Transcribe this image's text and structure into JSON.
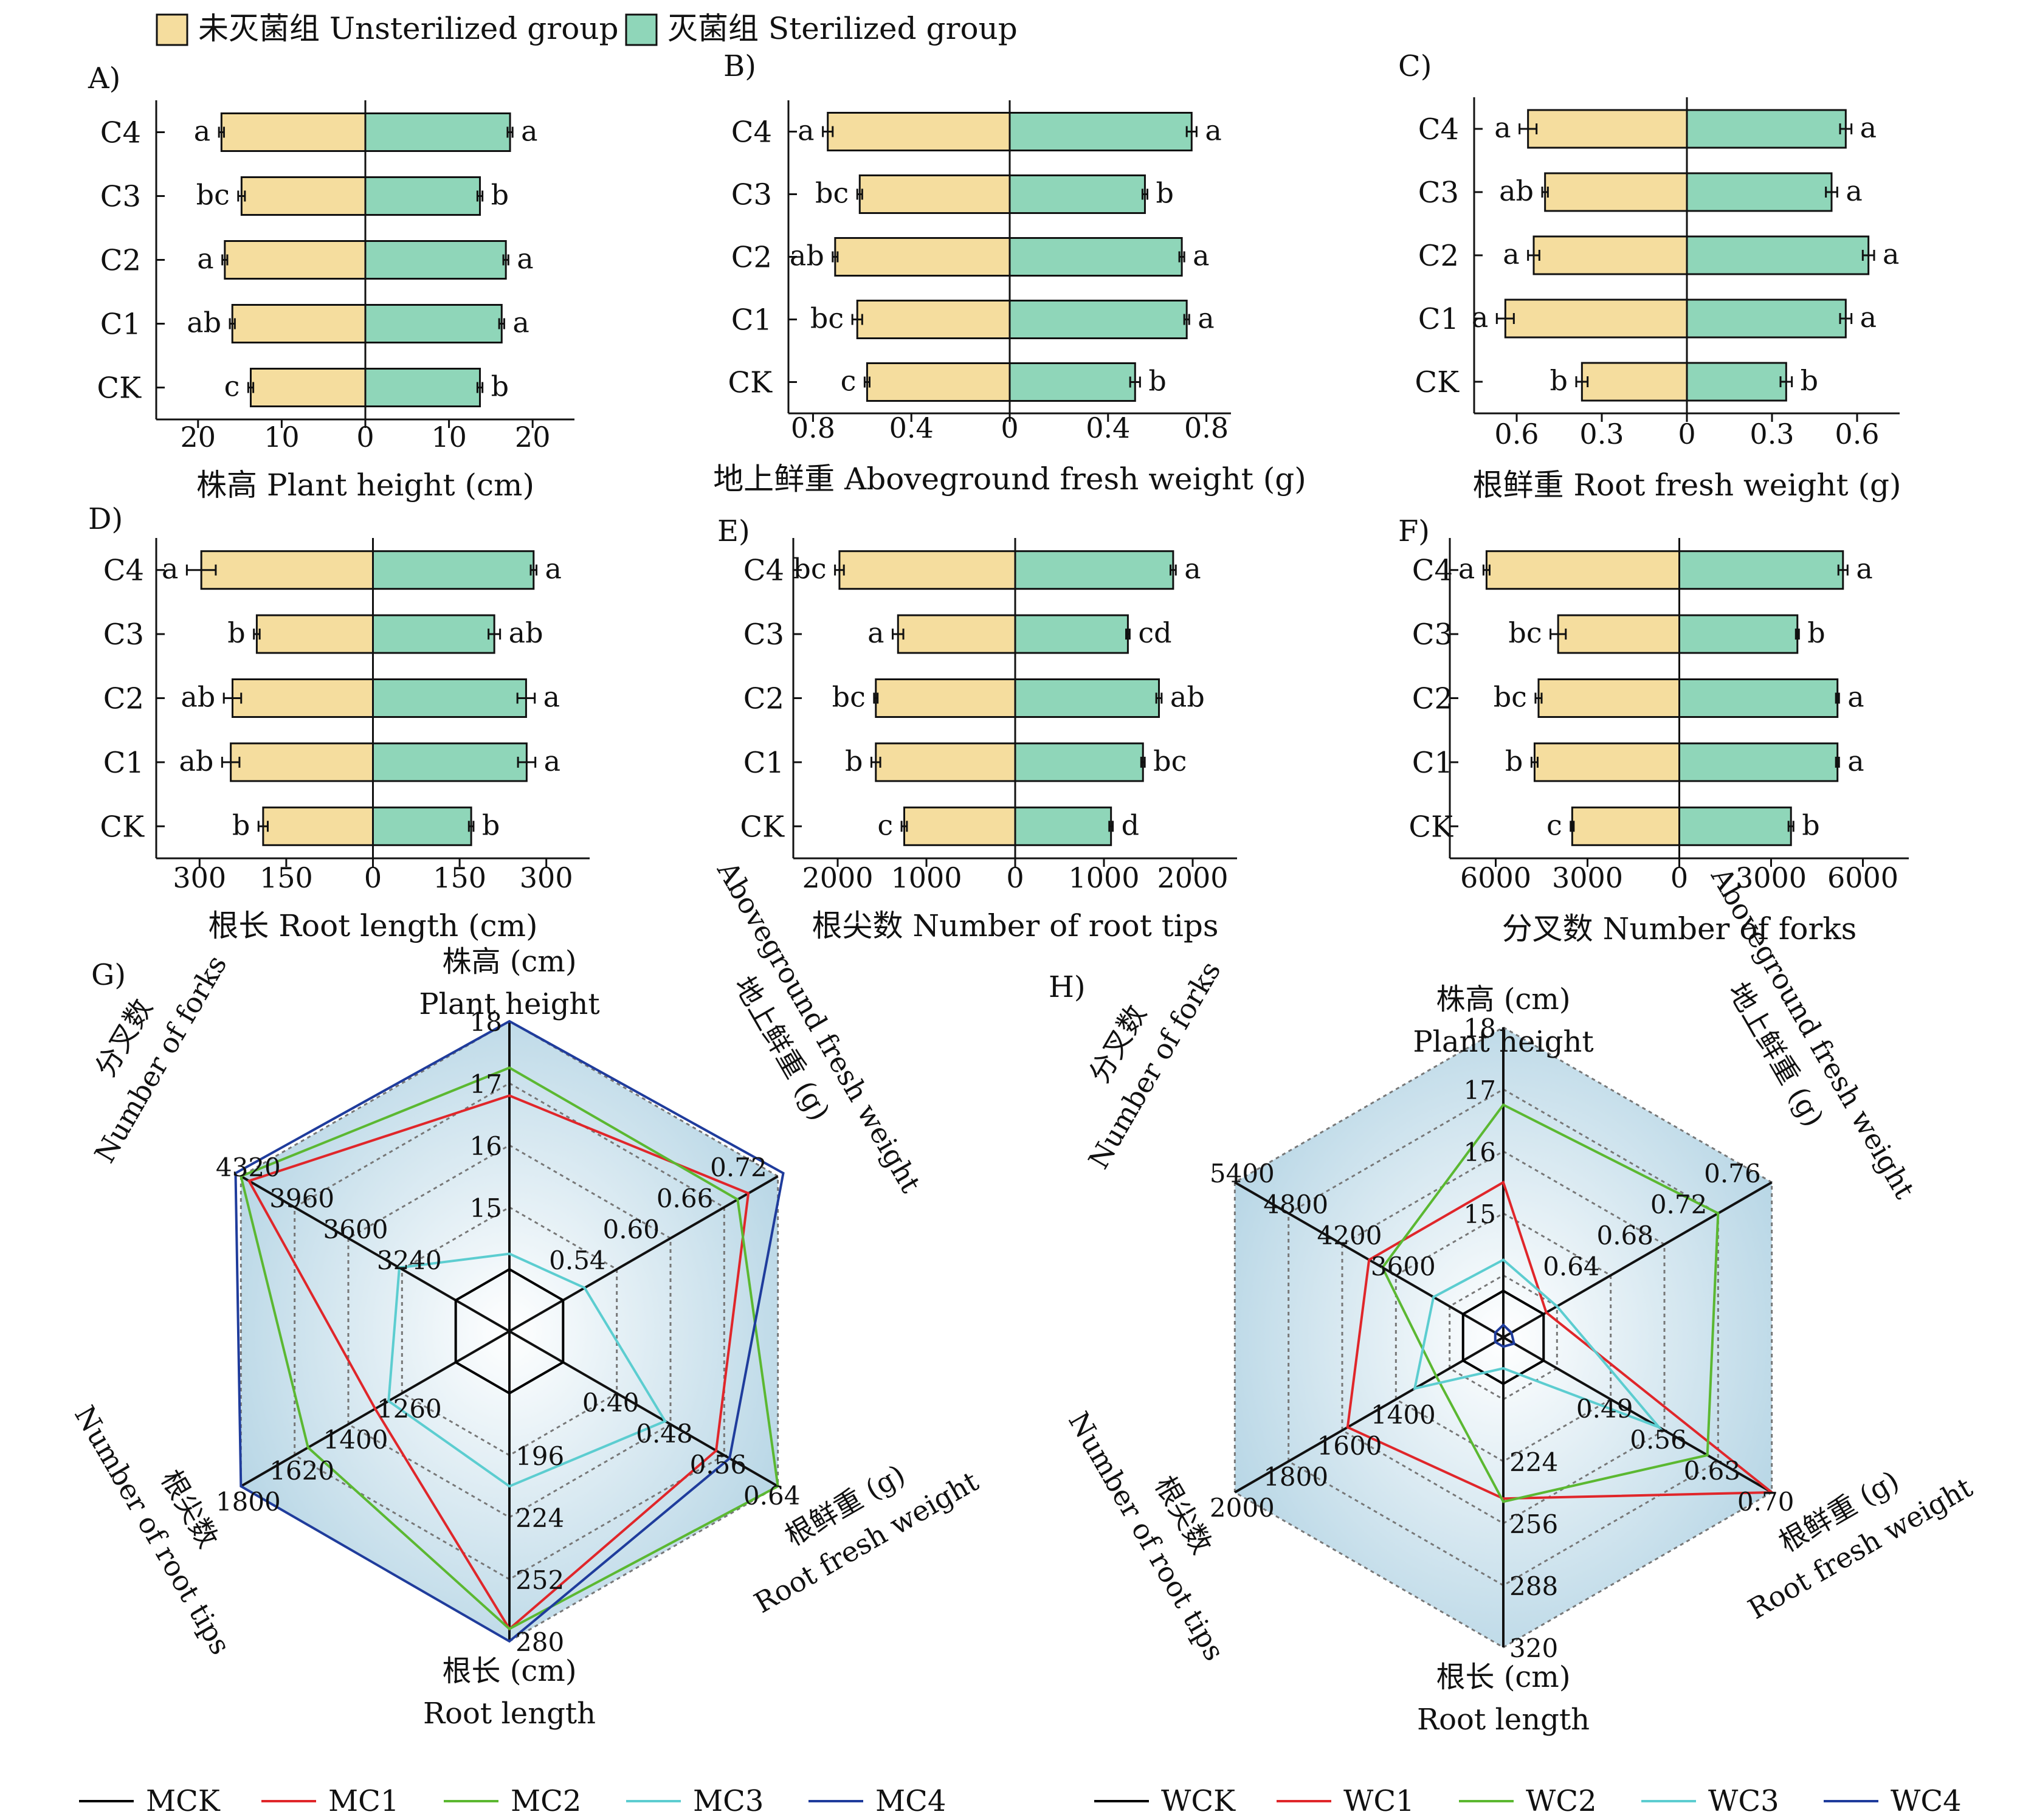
{
  "colors": {
    "unsterilized": "#f5dd9e",
    "sterilized": "#8fd6b9",
    "MCK": "#000000",
    "MC1": "#e0262a",
    "MC2": "#5bb831",
    "MC3": "#5ccdd0",
    "MC4": "#1f3c9c",
    "WCK": "#000000",
    "WC1": "#e0262a",
    "WC2": "#5bb831",
    "WC3": "#5ccdd0",
    "WC4": "#1f3c9c"
  },
  "legend_top": {
    "unsterilized": "未灭菌组 Unsterilized group",
    "sterilized": "灭菌组 Sterilized group"
  },
  "chart_data": [
    {
      "type": "bar",
      "panel": "A)",
      "xlabel": "株高 Plant height (cm)",
      "categories": [
        "C4",
        "C3",
        "C2",
        "C1",
        "CK"
      ],
      "ticks": [
        "20",
        "10",
        "0",
        "10",
        "20"
      ],
      "ticks_val": [
        -20,
        -10,
        0,
        10,
        20
      ],
      "xlim": [
        -25,
        25
      ],
      "series": [
        {
          "name": "未灭菌组 Unsterilized group",
          "values": [
            17.2,
            14.8,
            16.8,
            15.9,
            13.7
          ],
          "errors": [
            0.3,
            0.4,
            0.3,
            0.3,
            0.3
          ],
          "letters": [
            "a",
            "bc",
            "a",
            "ab",
            "c"
          ]
        },
        {
          "name": "灭菌组 Sterilized group",
          "values": [
            17.3,
            13.7,
            16.8,
            16.3,
            13.7
          ],
          "errors": [
            0.3,
            0.3,
            0.3,
            0.3,
            0.3
          ],
          "letters": [
            "a",
            "b",
            "a",
            "a",
            "b"
          ]
        }
      ]
    },
    {
      "type": "bar",
      "panel": "B)",
      "xlabel": "地上鲜重 Aboveground fresh weight (g)",
      "categories": [
        "C4",
        "C3",
        "C2",
        "C1",
        "CK"
      ],
      "ticks": [
        "0.8",
        "0.4",
        "0",
        "0.4",
        "0.8"
      ],
      "ticks_val": [
        -0.8,
        -0.4,
        0,
        0.4,
        0.8
      ],
      "xlim": [
        -0.9,
        0.9
      ],
      "series": [
        {
          "name": "未灭菌组 Unsterilized group",
          "values": [
            0.74,
            0.61,
            0.71,
            0.62,
            0.58
          ],
          "errors": [
            0.02,
            0.01,
            0.01,
            0.02,
            0.01
          ],
          "letters": [
            "a",
            "bc",
            "ab",
            "bc",
            "c"
          ]
        },
        {
          "name": "灭菌组 Sterilized group",
          "values": [
            0.74,
            0.55,
            0.7,
            0.72,
            0.51
          ],
          "errors": [
            0.02,
            0.01,
            0.01,
            0.01,
            0.02
          ],
          "letters": [
            "a",
            "b",
            "a",
            "a",
            "b"
          ]
        }
      ]
    },
    {
      "type": "bar",
      "panel": "C)",
      "xlabel": "根鲜重 Root fresh weight (g)",
      "categories": [
        "C4",
        "C3",
        "C2",
        "C1",
        "CK"
      ],
      "ticks": [
        "0.6",
        "0.3",
        "0",
        "0.3",
        "0.6"
      ],
      "ticks_val": [
        -0.6,
        -0.3,
        0,
        0.3,
        0.6
      ],
      "xlim": [
        -0.75,
        0.75
      ],
      "series": [
        {
          "name": "未灭菌组 Unsterilized group",
          "values": [
            0.56,
            0.5,
            0.54,
            0.64,
            0.37
          ],
          "errors": [
            0.03,
            0.01,
            0.02,
            0.03,
            0.02
          ],
          "letters": [
            "a",
            "ab",
            "a",
            "a",
            "b"
          ]
        },
        {
          "name": "灭菌组 Sterilized group",
          "values": [
            0.56,
            0.51,
            0.64,
            0.56,
            0.35
          ],
          "errors": [
            0.02,
            0.02,
            0.02,
            0.02,
            0.02
          ],
          "letters": [
            "a",
            "a",
            "a",
            "a",
            "b"
          ]
        }
      ]
    },
    {
      "type": "bar",
      "panel": "D)",
      "xlabel": "根长 Root length (cm)",
      "categories": [
        "C4",
        "C3",
        "C2",
        "C1",
        "CK"
      ],
      "ticks": [
        "300",
        "150",
        "0",
        "150",
        "300"
      ],
      "ticks_val": [
        -300,
        -150,
        0,
        150,
        300
      ],
      "xlim": [
        -375,
        375
      ],
      "series": [
        {
          "name": "未灭菌组 Unsterilized group",
          "values": [
            297,
            201,
            243,
            246,
            190
          ],
          "errors": [
            25,
            5,
            15,
            15,
            8
          ],
          "letters": [
            "a",
            "b",
            "ab",
            "ab",
            "b"
          ]
        },
        {
          "name": "灭菌组 Sterilized group",
          "values": [
            278,
            210,
            265,
            266,
            170
          ],
          "errors": [
            5,
            10,
            15,
            15,
            4
          ],
          "letters": [
            "a",
            "ab",
            "a",
            "a",
            "b"
          ]
        }
      ]
    },
    {
      "type": "bar",
      "panel": "E)",
      "xlabel": "根尖数 Number of root tips",
      "categories": [
        "C4",
        "C3",
        "C2",
        "C1",
        "CK"
      ],
      "ticks": [
        "2000",
        "1000",
        "0",
        "1000",
        "2000"
      ],
      "ticks_val": [
        -2000,
        -1000,
        0,
        1000,
        2000
      ],
      "xlim": [
        -2500,
        2500
      ],
      "series": [
        {
          "name": "未灭菌组 Unsterilized group",
          "values": [
            1980,
            1320,
            1570,
            1570,
            1250
          ],
          "errors": [
            50,
            60,
            20,
            50,
            30
          ],
          "letters": [
            "bc",
            "a",
            "bc",
            "b",
            "c"
          ]
        },
        {
          "name": "灭菌组 Sterilized group",
          "values": [
            1780,
            1270,
            1620,
            1440,
            1080
          ],
          "errors": [
            30,
            20,
            30,
            20,
            20
          ],
          "letters": [
            "a",
            "cd",
            "ab",
            "bc",
            "d"
          ]
        }
      ]
    },
    {
      "type": "bar",
      "panel": "F)",
      "xlabel": "分叉数 Number of forks",
      "categories": [
        "C4",
        "C3",
        "C2",
        "C1",
        "CK"
      ],
      "ticks": [
        "6000",
        "3000",
        "0",
        "3000",
        "6000"
      ],
      "ticks_val": [
        -6000,
        -3000,
        0,
        3000,
        6000
      ],
      "xlim": [
        -7500,
        7500
      ],
      "series": [
        {
          "name": "未灭菌组 Unsterilized group",
          "values": [
            6300,
            3960,
            4600,
            4730,
            3500
          ],
          "errors": [
            100,
            250,
            100,
            100,
            50
          ],
          "letters": [
            "a",
            "bc",
            "bc",
            "b",
            "c"
          ]
        },
        {
          "name": "灭菌组 Sterilized group",
          "values": [
            5350,
            3860,
            5170,
            5170,
            3650
          ],
          "errors": [
            150,
            50,
            50,
            50,
            80
          ],
          "letters": [
            "a",
            "b",
            "a",
            "a",
            "b"
          ]
        }
      ]
    },
    {
      "type": "radar",
      "panel": "G)",
      "axes": [
        {
          "label1": "株高 (cm)",
          "label2": "Plant height",
          "ticks": [
            "15",
            "16",
            "17",
            "18"
          ]
        },
        {
          "label1": "地上鲜重 (g)",
          "label2": "Aboveground fresh weight",
          "ticks": [
            "0.54",
            "0.60",
            "0.66",
            "0.72"
          ]
        },
        {
          "label1": "根鲜重 (g)",
          "label2": "Root fresh weight",
          "ticks": [
            "0.40",
            "0.48",
            "0.56",
            "0.64"
          ]
        },
        {
          "label1": "根长 (cm)",
          "label2": "Root length",
          "ticks": [
            "196",
            "224",
            "252",
            "280"
          ]
        },
        {
          "label1": "根尖数",
          "label2": "Number of root tips",
          "ticks": [
            "1260",
            "1400",
            "1620",
            "1800"
          ]
        },
        {
          "label1": "分叉数",
          "label2": "Number of forks",
          "ticks": [
            "3240",
            "3600",
            "3960",
            "4320"
          ]
        }
      ],
      "series": [
        {
          "name": "MCK",
          "key": "MCK",
          "values": [
            0.2,
            0.2,
            0.2,
            0.2,
            0.2,
            0.2
          ]
        },
        {
          "name": "MC1",
          "key": "MC1",
          "values": [
            0.76,
            0.89,
            0.77,
            0.96,
            0.5,
            0.97
          ]
        },
        {
          "name": "MC2",
          "key": "MC2",
          "values": [
            0.85,
            0.85,
            1.0,
            0.96,
            0.75,
            1.0
          ]
        },
        {
          "name": "MC3",
          "key": "MC3",
          "values": [
            0.25,
            0.28,
            0.58,
            0.5,
            0.45,
            0.41
          ]
        },
        {
          "name": "MC4",
          "key": "MC4",
          "values": [
            1.0,
            1.02,
            0.82,
            1.0,
            1.0,
            1.02
          ]
        }
      ]
    },
    {
      "type": "radar",
      "panel": "H)",
      "axes": [
        {
          "label1": "株高 (cm)",
          "label2": "Plant height",
          "ticks": [
            "15",
            "16",
            "17",
            "18"
          ]
        },
        {
          "label1": "地上鲜重 (g)",
          "label2": "Aboveground fresh weight",
          "ticks": [
            "0.64",
            "0.68",
            "0.72",
            "0.76"
          ]
        },
        {
          "label1": "根鲜重 (g)",
          "label2": "Root fresh weight",
          "ticks": [
            "0.49",
            "0.56",
            "0.63",
            "0.70"
          ]
        },
        {
          "label1": "根长 (cm)",
          "label2": "Root length",
          "ticks": [
            "224",
            "256",
            "288",
            "320"
          ]
        },
        {
          "label1": "根尖数",
          "label2": "Number of root tips",
          "ticks": [
            "1400",
            "1600",
            "1800",
            "2000"
          ]
        },
        {
          "label1": "分叉数",
          "label2": "Number of forks",
          "ticks": [
            "3600",
            "4200",
            "4800",
            "5400"
          ]
        }
      ],
      "series": [
        {
          "name": "WCK",
          "key": "WCK",
          "values": [
            0.15,
            0.15,
            0.15,
            0.15,
            0.15,
            0.15
          ]
        },
        {
          "name": "WC1",
          "key": "WC1",
          "values": [
            0.5,
            0.16,
            1.0,
            0.52,
            0.58,
            0.5
          ]
        },
        {
          "name": "WC2",
          "key": "WC2",
          "values": [
            0.75,
            0.8,
            0.76,
            0.53,
            0.25,
            0.45
          ]
        },
        {
          "name": "WC3",
          "key": "WC3",
          "values": [
            0.25,
            0.2,
            0.58,
            0.1,
            0.33,
            0.26
          ]
        },
        {
          "name": "WC4",
          "key": "WC4",
          "values": [
            0.04,
            0.03,
            0.04,
            0.03,
            0.03,
            0.03
          ]
        }
      ]
    }
  ]
}
